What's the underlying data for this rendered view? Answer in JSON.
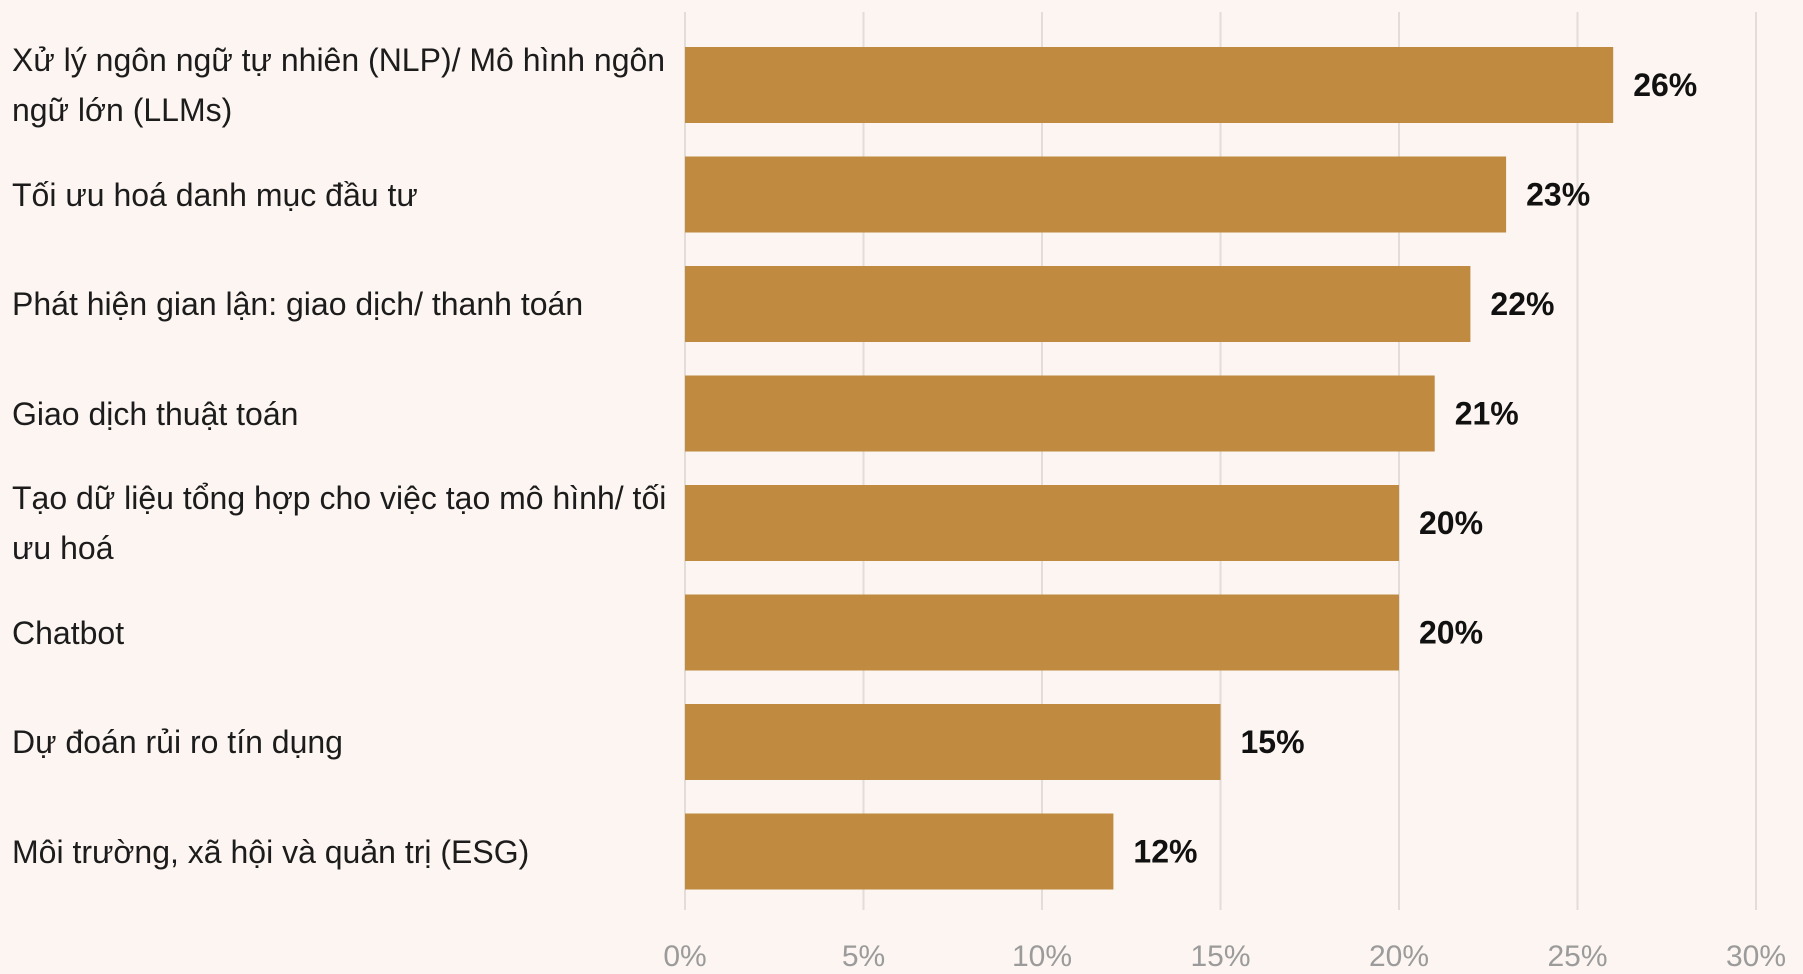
{
  "chart_data": {
    "type": "bar",
    "orientation": "horizontal",
    "categories": [
      "Xử lý ngôn ngữ tự nhiên (NLP)/ Mô hình ngôn ngữ lớn (LLMs)",
      "Tối ưu hoá danh mục đầu tư",
      "Phát hiện gian lận: giao dịch/ thanh toán",
      "Giao dịch thuật toán",
      "Tạo dữ liệu tổng hợp cho việc tạo mô hình/ tối ưu hoá",
      "Chatbot",
      "Dự đoán rủi ro tín dụng",
      "Môi trường, xã hội và quản trị (ESG)"
    ],
    "values": [
      26,
      23,
      22,
      21,
      20,
      20,
      15,
      12
    ],
    "value_labels": [
      "26%",
      "23%",
      "22%",
      "21%",
      "20%",
      "20%",
      "15%",
      "12%"
    ],
    "xlim": [
      0,
      30
    ],
    "x_ticks": [
      0,
      5,
      10,
      15,
      20,
      25,
      30
    ],
    "x_tick_labels": [
      "0%",
      "5%",
      "10%",
      "15%",
      "20%",
      "25%",
      "30%"
    ],
    "grid": true,
    "colors": {
      "bar": "#c08b40",
      "grid": "#e3dcd9",
      "background": "#fcf5f1",
      "tick_text": "#9b9b9b",
      "value_text": "#111111"
    }
  }
}
